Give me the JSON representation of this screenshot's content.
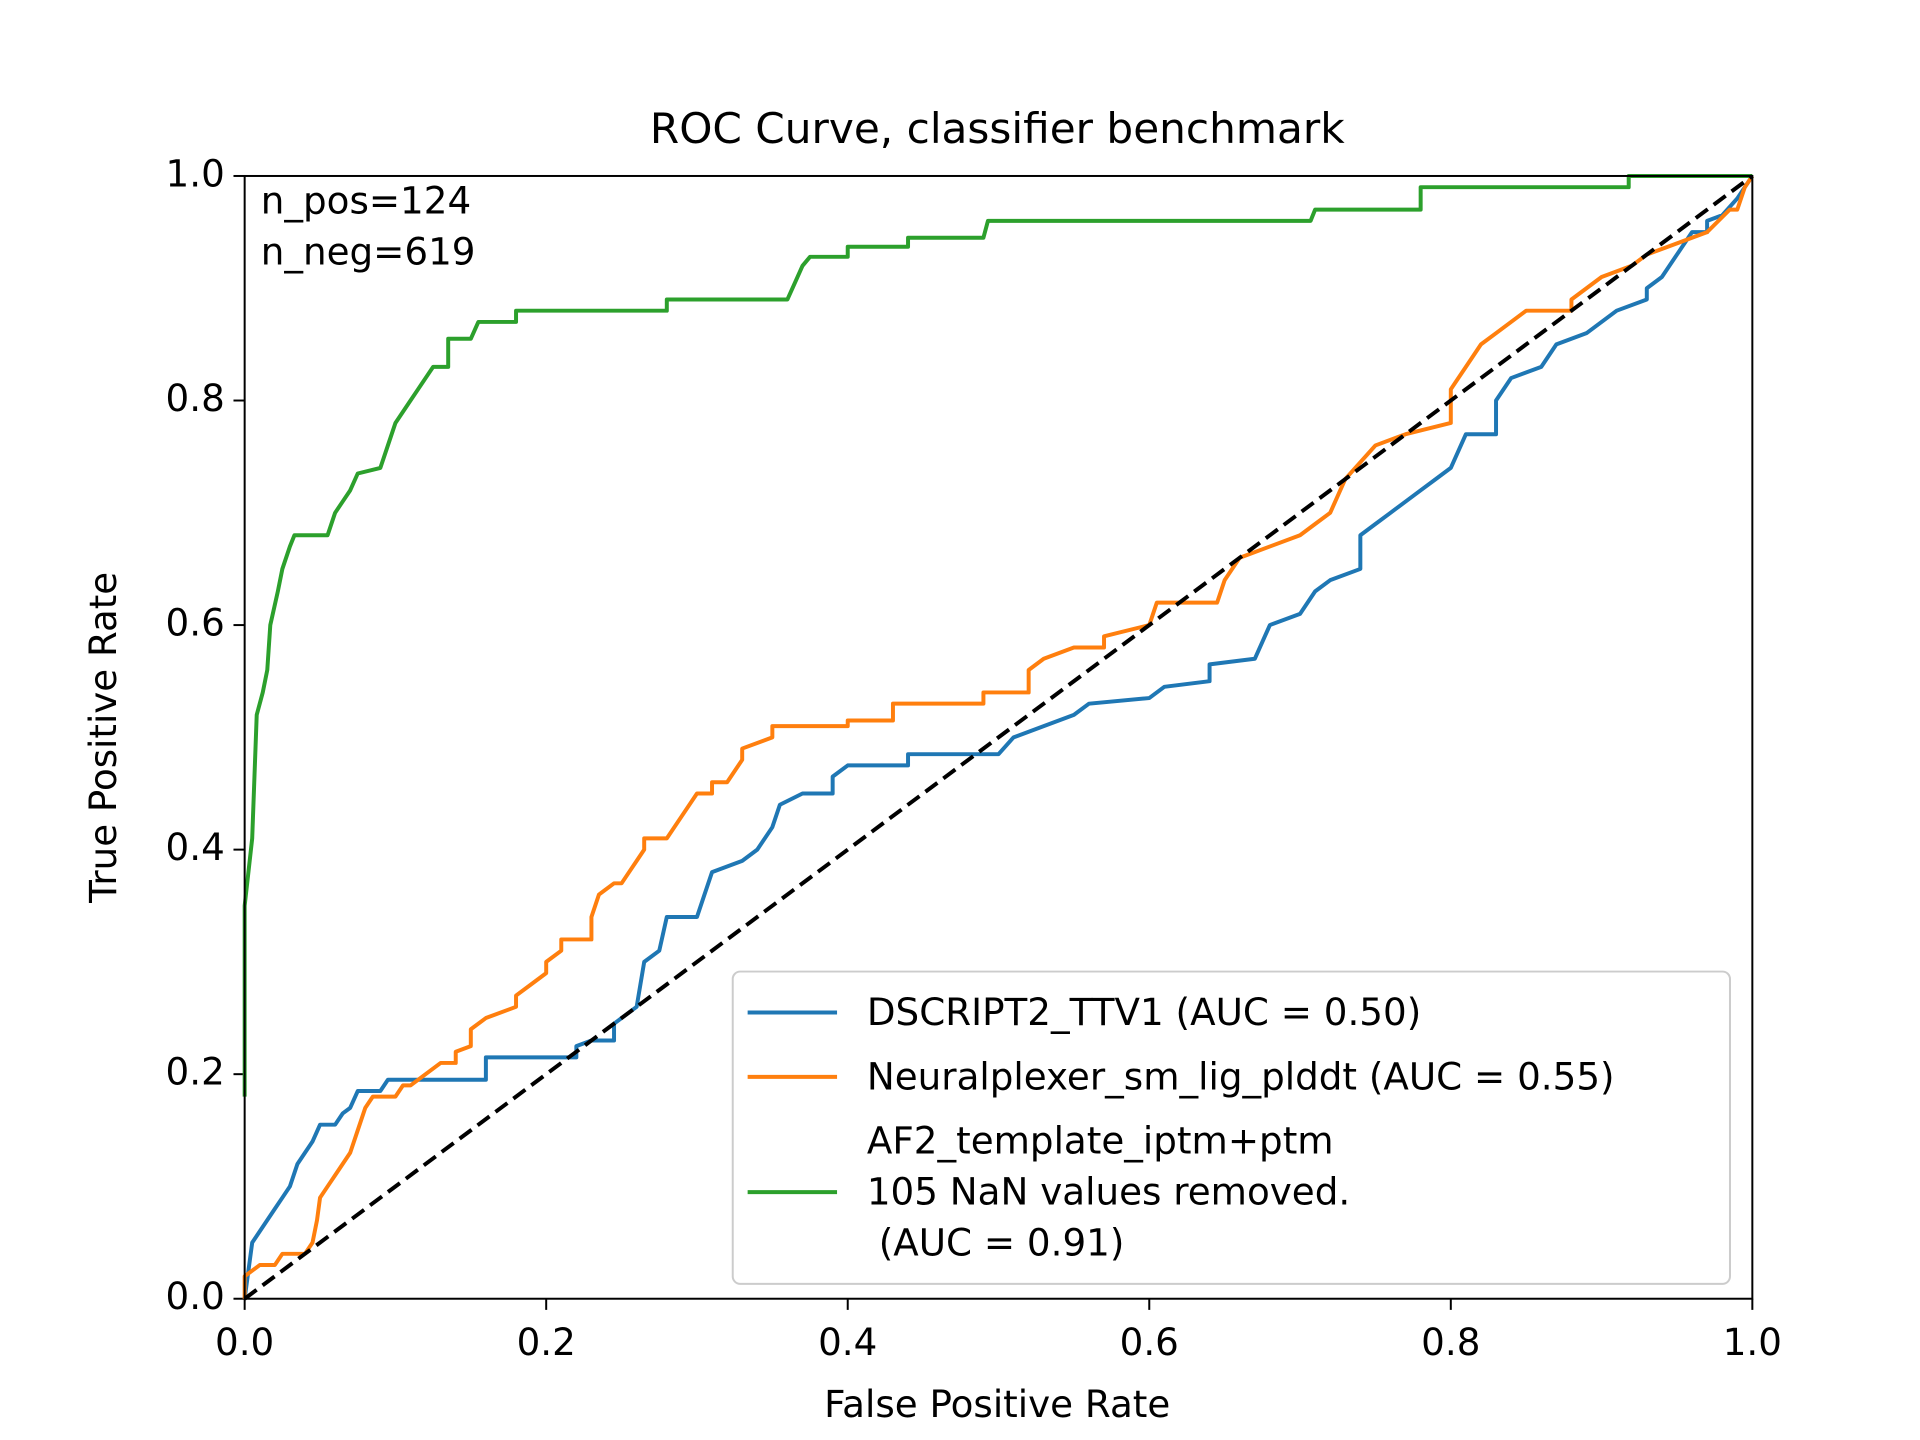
{
  "chart_data": {
    "type": "line",
    "title": "ROC Curve, classifier benchmark",
    "xlabel": "False Positive Rate",
    "ylabel": "True Positive Rate",
    "annotations": [
      "n_pos=124",
      "n_neg=619"
    ],
    "xlim": [
      0,
      1
    ],
    "ylim": [
      0,
      1
    ],
    "xticks": [
      {
        "value": 0,
        "label": "0.0"
      },
      0.2,
      0.4,
      0.6,
      0.8,
      {
        "value": 1,
        "label": "1.0"
      }
    ],
    "yticks": [
      {
        "value": 0,
        "label": "0.0"
      },
      0.2,
      0.4,
      0.6,
      0.8,
      {
        "value": 1,
        "label": "1.0"
      }
    ],
    "legend": "lower right",
    "series": [
      {
        "name": "DSCRIPT2_TTV1 (AUC = 0.50)",
        "color": "#1f77b4",
        "x": [
          0,
          0.005,
          0.01,
          0.015,
          0.02,
          0.025,
          0.03,
          0.035,
          0.04,
          0.045,
          0.05,
          0.06,
          0.065,
          0.07,
          0.075,
          0.09,
          0.095,
          0.16,
          0.16,
          0.22,
          0.22,
          0.23,
          0.245,
          0.245,
          0.26,
          0.265,
          0.275,
          0.28,
          0.3,
          0.305,
          0.31,
          0.33,
          0.34,
          0.35,
          0.355,
          0.37,
          0.39,
          0.39,
          0.4,
          0.44,
          0.44,
          0.5,
          0.51,
          0.53,
          0.55,
          0.56,
          0.6,
          0.61,
          0.64,
          0.64,
          0.67,
          0.68,
          0.7,
          0.71,
          0.72,
          0.74,
          0.74,
          0.75,
          0.76,
          0.77,
          0.78,
          0.79,
          0.8,
          0.81,
          0.83,
          0.83,
          0.84,
          0.86,
          0.87,
          0.89,
          0.91,
          0.93,
          0.93,
          0.94,
          0.95,
          0.96,
          0.97,
          0.97,
          0.98,
          0.99,
          1
        ],
        "values": [
          0,
          0.05,
          0.06,
          0.07,
          0.08,
          0.09,
          0.1,
          0.12,
          0.13,
          0.14,
          0.155,
          0.155,
          0.165,
          0.17,
          0.185,
          0.185,
          0.195,
          0.195,
          0.215,
          0.215,
          0.225,
          0.23,
          0.23,
          0.245,
          0.26,
          0.3,
          0.31,
          0.34,
          0.34,
          0.36,
          0.38,
          0.39,
          0.4,
          0.42,
          0.44,
          0.45,
          0.45,
          0.465,
          0.475,
          0.475,
          0.485,
          0.485,
          0.5,
          0.51,
          0.52,
          0.53,
          0.535,
          0.545,
          0.55,
          0.565,
          0.57,
          0.6,
          0.61,
          0.63,
          0.64,
          0.65,
          0.68,
          0.69,
          0.7,
          0.71,
          0.72,
          0.73,
          0.74,
          0.77,
          0.77,
          0.8,
          0.82,
          0.83,
          0.85,
          0.86,
          0.88,
          0.89,
          0.9,
          0.91,
          0.93,
          0.95,
          0.95,
          0.96,
          0.965,
          0.98,
          1
        ]
      },
      {
        "name": "Neuralplexer_sm_lig_plddt (AUC = 0.55)",
        "color": "#ff7f0e",
        "x": [
          0,
          0,
          0.01,
          0.02,
          0.025,
          0.04,
          0.045,
          0.048,
          0.05,
          0.055,
          0.06,
          0.065,
          0.07,
          0.075,
          0.08,
          0.085,
          0.1,
          0.105,
          0.11,
          0.12,
          0.13,
          0.14,
          0.14,
          0.15,
          0.15,
          0.16,
          0.18,
          0.18,
          0.19,
          0.2,
          0.2,
          0.21,
          0.21,
          0.23,
          0.23,
          0.235,
          0.245,
          0.25,
          0.255,
          0.26,
          0.265,
          0.265,
          0.28,
          0.29,
          0.3,
          0.31,
          0.31,
          0.32,
          0.33,
          0.33,
          0.35,
          0.35,
          0.4,
          0.4,
          0.43,
          0.43,
          0.49,
          0.49,
          0.52,
          0.52,
          0.53,
          0.55,
          0.57,
          0.57,
          0.6,
          0.605,
          0.645,
          0.65,
          0.66,
          0.7,
          0.71,
          0.72,
          0.73,
          0.75,
          0.77,
          0.8,
          0.8,
          0.81,
          0.82,
          0.83,
          0.85,
          0.88,
          0.88,
          0.9,
          0.92,
          0.93,
          0.95,
          0.97,
          0.985,
          0.99,
          0.995,
          1
        ],
        "values": [
          0,
          0.02,
          0.03,
          0.03,
          0.04,
          0.04,
          0.05,
          0.07,
          0.09,
          0.1,
          0.11,
          0.12,
          0.13,
          0.15,
          0.17,
          0.18,
          0.18,
          0.19,
          0.19,
          0.2,
          0.21,
          0.21,
          0.22,
          0.225,
          0.24,
          0.25,
          0.26,
          0.27,
          0.28,
          0.29,
          0.3,
          0.31,
          0.32,
          0.32,
          0.34,
          0.36,
          0.37,
          0.37,
          0.38,
          0.39,
          0.4,
          0.41,
          0.41,
          0.43,
          0.45,
          0.45,
          0.46,
          0.46,
          0.48,
          0.49,
          0.5,
          0.51,
          0.51,
          0.515,
          0.515,
          0.53,
          0.53,
          0.54,
          0.54,
          0.56,
          0.57,
          0.58,
          0.58,
          0.59,
          0.6,
          0.62,
          0.62,
          0.64,
          0.66,
          0.68,
          0.69,
          0.7,
          0.73,
          0.76,
          0.77,
          0.78,
          0.81,
          0.83,
          0.85,
          0.86,
          0.88,
          0.88,
          0.89,
          0.91,
          0.92,
          0.93,
          0.94,
          0.95,
          0.97,
          0.97,
          0.99,
          1
        ]
      },
      {
        "name": "AF2_template_iptm+ptm\n105 NaN values removed.\n (AUC = 0.91)",
        "color": "#2ca02c",
        "x": [
          0,
          0,
          0.005,
          0.008,
          0.012,
          0.015,
          0.017,
          0.022,
          0.025,
          0.03,
          0.033,
          0.055,
          0.06,
          0.065,
          0.07,
          0.075,
          0.09,
          0.095,
          0.1,
          0.105,
          0.11,
          0.115,
          0.12,
          0.125,
          0.135,
          0.135,
          0.15,
          0.155,
          0.18,
          0.18,
          0.28,
          0.28,
          0.36,
          0.365,
          0.37,
          0.375,
          0.4,
          0.4,
          0.44,
          0.44,
          0.49,
          0.493,
          0.707,
          0.71,
          0.78,
          0.78,
          0.918,
          0.918,
          1
        ],
        "values": [
          0.18,
          0.35,
          0.41,
          0.52,
          0.54,
          0.56,
          0.6,
          0.63,
          0.65,
          0.67,
          0.68,
          0.68,
          0.7,
          0.71,
          0.72,
          0.735,
          0.74,
          0.76,
          0.78,
          0.79,
          0.8,
          0.81,
          0.82,
          0.83,
          0.83,
          0.855,
          0.855,
          0.87,
          0.87,
          0.88,
          0.88,
          0.89,
          0.89,
          0.905,
          0.92,
          0.928,
          0.928,
          0.937,
          0.937,
          0.945,
          0.945,
          0.96,
          0.96,
          0.97,
          0.97,
          0.99,
          0.99,
          1,
          1
        ]
      }
    ]
  }
}
